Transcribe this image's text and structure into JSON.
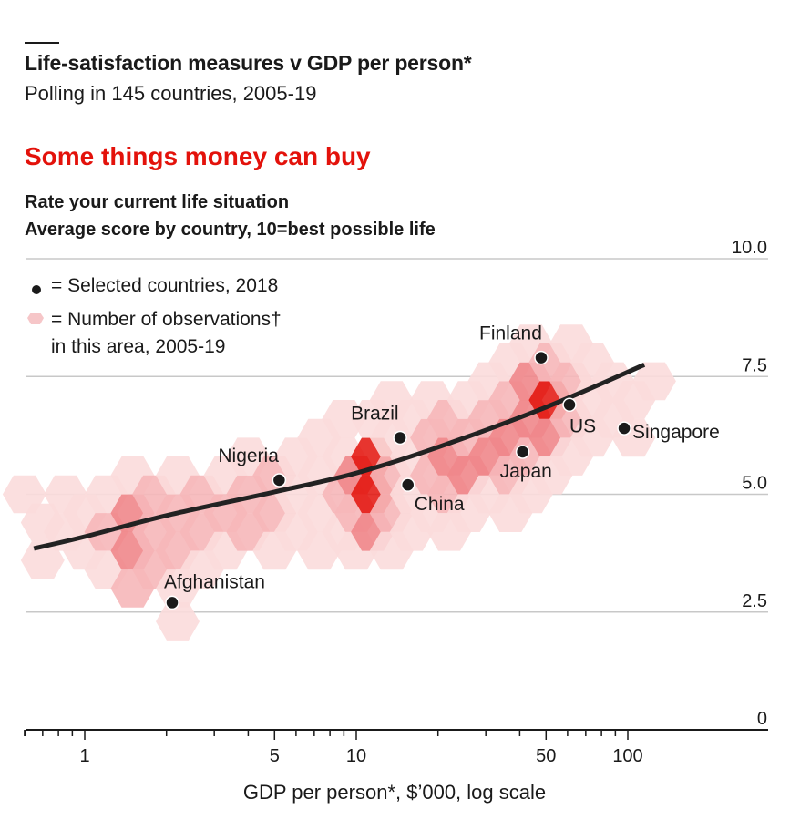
{
  "header": {
    "title": "Life-satisfaction measures v GDP per person*",
    "subtitle": "Polling in 145 countries, 2005-19"
  },
  "chart_data": {
    "type": "scatter",
    "title": "Some things money can buy",
    "subtitle_lines": [
      "Rate your current life situation",
      "Average score by country, 10=best possible life"
    ],
    "xlabel": "GDP per person*, $’000, log scale",
    "x_scale": "log",
    "x_range": [
      0.55,
      170
    ],
    "x_ticks": [
      {
        "value": 1,
        "label": "1"
      },
      {
        "value": 5,
        "label": "5"
      },
      {
        "value": 10,
        "label": "10"
      },
      {
        "value": 50,
        "label": "50"
      },
      {
        "value": 100,
        "label": "100"
      }
    ],
    "x_minor_ticks": [
      0.6,
      0.7,
      0.8,
      0.9,
      2,
      3,
      4,
      6,
      7,
      8,
      9,
      20,
      30,
      40,
      60,
      70,
      80,
      90
    ],
    "ylim": [
      0,
      10
    ],
    "y_ticks": [
      {
        "value": 0,
        "label": "0"
      },
      {
        "value": 2.5,
        "label": "2.5"
      },
      {
        "value": 5,
        "label": "5.0"
      },
      {
        "value": 7.5,
        "label": "7.5"
      },
      {
        "value": 10,
        "label": "10.0"
      }
    ],
    "grid": true,
    "legend": {
      "position": "top-left",
      "items": [
        {
          "symbol": "dot",
          "label": "= Selected countries, 2018"
        },
        {
          "symbol": "hexagon",
          "label_lines": [
            "= Number of observations†",
            "in this area, 2005-19"
          ]
        }
      ]
    },
    "countries": [
      {
        "name": "Afghanistan",
        "x": 2.1,
        "y": 2.7
      },
      {
        "name": "Nigeria",
        "x": 5.2,
        "y": 5.3
      },
      {
        "name": "Brazil",
        "x": 14.5,
        "y": 6.2
      },
      {
        "name": "China",
        "x": 15.5,
        "y": 5.2
      },
      {
        "name": "Japan",
        "x": 41,
        "y": 5.9
      },
      {
        "name": "Finland",
        "x": 48,
        "y": 7.9
      },
      {
        "name": "US",
        "x": 61,
        "y": 6.9
      },
      {
        "name": "Singapore",
        "x": 97,
        "y": 6.4
      }
    ],
    "trend_line": [
      {
        "x": 0.65,
        "y": 3.85
      },
      {
        "x": 1,
        "y": 4.1
      },
      {
        "x": 2,
        "y": 4.55
      },
      {
        "x": 5,
        "y": 5.05
      },
      {
        "x": 10,
        "y": 5.45
      },
      {
        "x": 20,
        "y": 6.0
      },
      {
        "x": 50,
        "y": 6.85
      },
      {
        "x": 115,
        "y": 7.75
      }
    ],
    "density_hexagons": [
      {
        "x": 0.6,
        "y": 5.0,
        "level": 1
      },
      {
        "x": 0.7,
        "y": 4.4,
        "level": 1
      },
      {
        "x": 0.7,
        "y": 3.6,
        "level": 1
      },
      {
        "x": 0.85,
        "y": 5.0,
        "level": 1
      },
      {
        "x": 0.85,
        "y": 4.2,
        "level": 1
      },
      {
        "x": 1.0,
        "y": 4.6,
        "level": 1
      },
      {
        "x": 1.0,
        "y": 3.8,
        "level": 1
      },
      {
        "x": 1.2,
        "y": 5.0,
        "level": 1
      },
      {
        "x": 1.2,
        "y": 4.2,
        "level": 2
      },
      {
        "x": 1.2,
        "y": 3.4,
        "level": 1
      },
      {
        "x": 1.5,
        "y": 4.6,
        "level": 3
      },
      {
        "x": 1.5,
        "y": 3.8,
        "level": 3
      },
      {
        "x": 1.5,
        "y": 3.0,
        "level": 2
      },
      {
        "x": 1.5,
        "y": 5.4,
        "level": 1
      },
      {
        "x": 1.8,
        "y": 5.0,
        "level": 2
      },
      {
        "x": 1.8,
        "y": 4.2,
        "level": 2
      },
      {
        "x": 1.8,
        "y": 3.4,
        "level": 2
      },
      {
        "x": 2.2,
        "y": 4.6,
        "level": 2
      },
      {
        "x": 2.2,
        "y": 3.8,
        "level": 2
      },
      {
        "x": 2.2,
        "y": 5.4,
        "level": 1
      },
      {
        "x": 2.2,
        "y": 3.0,
        "level": 1
      },
      {
        "x": 2.2,
        "y": 2.3,
        "level": 1
      },
      {
        "x": 2.7,
        "y": 5.0,
        "level": 2
      },
      {
        "x": 2.7,
        "y": 4.2,
        "level": 2
      },
      {
        "x": 2.7,
        "y": 3.4,
        "level": 1
      },
      {
        "x": 3.3,
        "y": 5.4,
        "level": 1
      },
      {
        "x": 3.3,
        "y": 4.6,
        "level": 2
      },
      {
        "x": 3.3,
        "y": 3.8,
        "level": 1
      },
      {
        "x": 4.0,
        "y": 5.0,
        "level": 2
      },
      {
        "x": 4.0,
        "y": 4.2,
        "level": 2
      },
      {
        "x": 4.0,
        "y": 5.8,
        "level": 1
      },
      {
        "x": 5.0,
        "y": 5.4,
        "level": 2
      },
      {
        "x": 5.0,
        "y": 4.6,
        "level": 2
      },
      {
        "x": 5.0,
        "y": 3.8,
        "level": 1
      },
      {
        "x": 6.0,
        "y": 5.8,
        "level": 1
      },
      {
        "x": 6.0,
        "y": 5.0,
        "level": 1
      },
      {
        "x": 6.0,
        "y": 4.2,
        "level": 1
      },
      {
        "x": 7.3,
        "y": 6.2,
        "level": 1
      },
      {
        "x": 7.3,
        "y": 5.4,
        "level": 1
      },
      {
        "x": 7.3,
        "y": 4.6,
        "level": 1
      },
      {
        "x": 7.3,
        "y": 3.8,
        "level": 1
      },
      {
        "x": 9.0,
        "y": 5.8,
        "level": 1
      },
      {
        "x": 9.0,
        "y": 5.0,
        "level": 2
      },
      {
        "x": 9.0,
        "y": 4.2,
        "level": 1
      },
      {
        "x": 9.0,
        "y": 6.6,
        "level": 1
      },
      {
        "x": 10.0,
        "y": 5.4,
        "level": 3
      },
      {
        "x": 10.0,
        "y": 4.6,
        "level": 2
      },
      {
        "x": 10.0,
        "y": 3.8,
        "level": 1
      },
      {
        "x": 11.5,
        "y": 5.8,
        "level": 4
      },
      {
        "x": 11.5,
        "y": 5.0,
        "level": 4
      },
      {
        "x": 11.5,
        "y": 4.2,
        "level": 3
      },
      {
        "x": 11.5,
        "y": 6.6,
        "level": 1
      },
      {
        "x": 13.5,
        "y": 5.4,
        "level": 2
      },
      {
        "x": 13.5,
        "y": 4.6,
        "level": 2
      },
      {
        "x": 13.5,
        "y": 6.2,
        "level": 1
      },
      {
        "x": 13.5,
        "y": 3.8,
        "level": 1
      },
      {
        "x": 13.5,
        "y": 7.0,
        "level": 1
      },
      {
        "x": 16.0,
        "y": 5.8,
        "level": 1
      },
      {
        "x": 16.0,
        "y": 5.0,
        "level": 1
      },
      {
        "x": 16.0,
        "y": 4.2,
        "level": 1
      },
      {
        "x": 16.0,
        "y": 6.6,
        "level": 1
      },
      {
        "x": 19.0,
        "y": 6.2,
        "level": 2
      },
      {
        "x": 19.0,
        "y": 5.4,
        "level": 2
      },
      {
        "x": 19.0,
        "y": 4.6,
        "level": 1
      },
      {
        "x": 19.0,
        "y": 7.0,
        "level": 1
      },
      {
        "x": 22.0,
        "y": 5.8,
        "level": 3
      },
      {
        "x": 22.0,
        "y": 5.0,
        "level": 2
      },
      {
        "x": 22.0,
        "y": 6.6,
        "level": 2
      },
      {
        "x": 22.0,
        "y": 4.2,
        "level": 1
      },
      {
        "x": 26.0,
        "y": 6.2,
        "level": 2
      },
      {
        "x": 26.0,
        "y": 5.4,
        "level": 3
      },
      {
        "x": 26.0,
        "y": 4.6,
        "level": 1
      },
      {
        "x": 26.0,
        "y": 7.0,
        "level": 1
      },
      {
        "x": 31.0,
        "y": 5.8,
        "level": 3
      },
      {
        "x": 31.0,
        "y": 5.0,
        "level": 1
      },
      {
        "x": 31.0,
        "y": 6.6,
        "level": 2
      },
      {
        "x": 31.0,
        "y": 7.4,
        "level": 1
      },
      {
        "x": 37.0,
        "y": 6.2,
        "level": 3
      },
      {
        "x": 37.0,
        "y": 5.4,
        "level": 2
      },
      {
        "x": 37.0,
        "y": 7.0,
        "level": 2
      },
      {
        "x": 37.0,
        "y": 7.8,
        "level": 1
      },
      {
        "x": 37.0,
        "y": 4.6,
        "level": 1
      },
      {
        "x": 44.0,
        "y": 6.6,
        "level": 3
      },
      {
        "x": 44.0,
        "y": 7.4,
        "level": 3
      },
      {
        "x": 44.0,
        "y": 5.8,
        "level": 2
      },
      {
        "x": 44.0,
        "y": 5.0,
        "level": 1
      },
      {
        "x": 44.0,
        "y": 8.2,
        "level": 1
      },
      {
        "x": 52.0,
        "y": 7.0,
        "level": 4
      },
      {
        "x": 52.0,
        "y": 7.8,
        "level": 2
      },
      {
        "x": 52.0,
        "y": 6.2,
        "level": 3
      },
      {
        "x": 52.0,
        "y": 5.4,
        "level": 1
      },
      {
        "x": 62.0,
        "y": 7.4,
        "level": 2
      },
      {
        "x": 62.0,
        "y": 6.6,
        "level": 2
      },
      {
        "x": 62.0,
        "y": 5.8,
        "level": 1
      },
      {
        "x": 62.0,
        "y": 8.2,
        "level": 1
      },
      {
        "x": 74.0,
        "y": 7.0,
        "level": 1
      },
      {
        "x": 74.0,
        "y": 6.2,
        "level": 1
      },
      {
        "x": 74.0,
        "y": 7.8,
        "level": 1
      },
      {
        "x": 88.0,
        "y": 7.4,
        "level": 1
      },
      {
        "x": 88.0,
        "y": 6.6,
        "level": 1
      },
      {
        "x": 105.0,
        "y": 7.0,
        "level": 1
      },
      {
        "x": 105.0,
        "y": 6.2,
        "level": 1
      },
      {
        "x": 125.0,
        "y": 7.4,
        "level": 1
      }
    ],
    "colors": {
      "level_1": "#fbdcdc",
      "level_2": "#f6b7b9",
      "level_3": "#f0878b",
      "level_4": "#e3120b",
      "dot": "#1a1a1a",
      "trend": "#222222",
      "grid": "#c8c8c8",
      "title_red": "#e3120b"
    }
  }
}
